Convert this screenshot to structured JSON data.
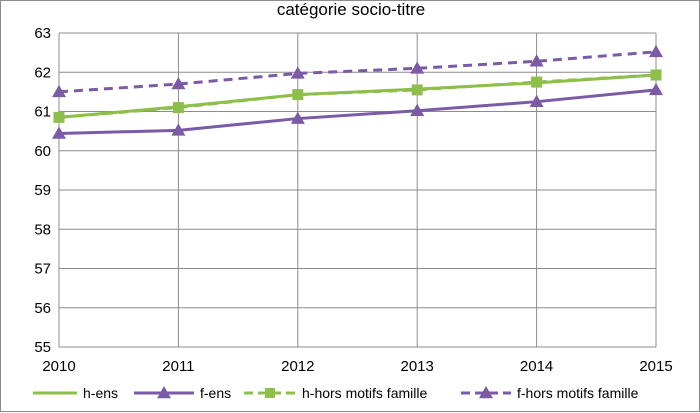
{
  "chart_data": {
    "type": "line",
    "title": "catégorie socio-titre",
    "xlabel": "",
    "ylabel": "",
    "x": [
      2010,
      2011,
      2012,
      2013,
      2014,
      2015
    ],
    "ylim": [
      55,
      63
    ],
    "yticks": [
      55,
      56,
      57,
      58,
      59,
      60,
      61,
      62,
      63
    ],
    "grid": true,
    "legend_position": "bottom",
    "series": [
      {
        "name": "h-ens",
        "values": [
          60.85,
          61.12,
          61.43,
          61.57,
          61.73,
          61.93
        ],
        "color": "#8dbf4a",
        "dashed": false,
        "marker": "none"
      },
      {
        "name": "f-ens",
        "values": [
          60.44,
          60.52,
          60.82,
          61.02,
          61.25,
          61.55
        ],
        "color": "#7b5ba6",
        "dashed": false,
        "marker": "triangle"
      },
      {
        "name": "h-hors motifs famille",
        "values": [
          60.85,
          61.1,
          61.43,
          61.55,
          61.75,
          61.93
        ],
        "color": "#8dbf4a",
        "dashed": true,
        "marker": "square"
      },
      {
        "name": "f-hors motifs famille",
        "values": [
          61.5,
          61.7,
          61.97,
          62.1,
          62.28,
          62.52
        ],
        "color": "#7b5ba6",
        "dashed": true,
        "marker": "triangle"
      }
    ]
  }
}
